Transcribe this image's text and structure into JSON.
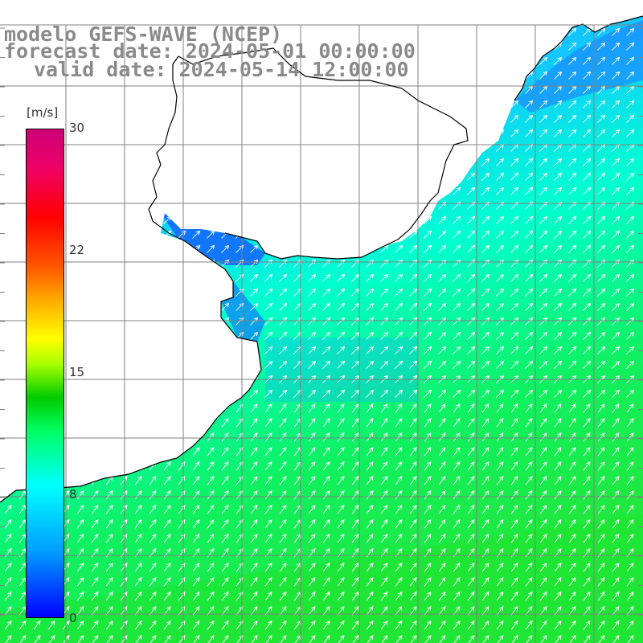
{
  "header": {
    "line1": "modelo GEFS-WAVE (NCEP)",
    "line2": "forecast date: 2024-05-01 00:00:00",
    "line3": "valid date: 2024-05-14 12:00:00"
  },
  "colorbar": {
    "unit": "[m/s]",
    "ticks": [
      {
        "value": 30,
        "label": "30"
      },
      {
        "value": 22,
        "label": "22"
      },
      {
        "value": 15,
        "label": "15"
      },
      {
        "value": 8,
        "label": "8"
      },
      {
        "value": 0,
        "label": "0"
      }
    ],
    "colors": {
      "low": "#0000ff",
      "mid_low": "#00ffff",
      "mid": "#00cc00",
      "mid_high": "#ffff00",
      "high": "#ff0000",
      "max": "#cc0077"
    }
  },
  "map": {
    "variable": "wind speed and direction",
    "arrow_icon": "wind-arrow-icon",
    "land_color": "#ffffff",
    "coastline_color": "#000000",
    "grid_color": "#808080",
    "arrow_color": "#ffffff"
  }
}
